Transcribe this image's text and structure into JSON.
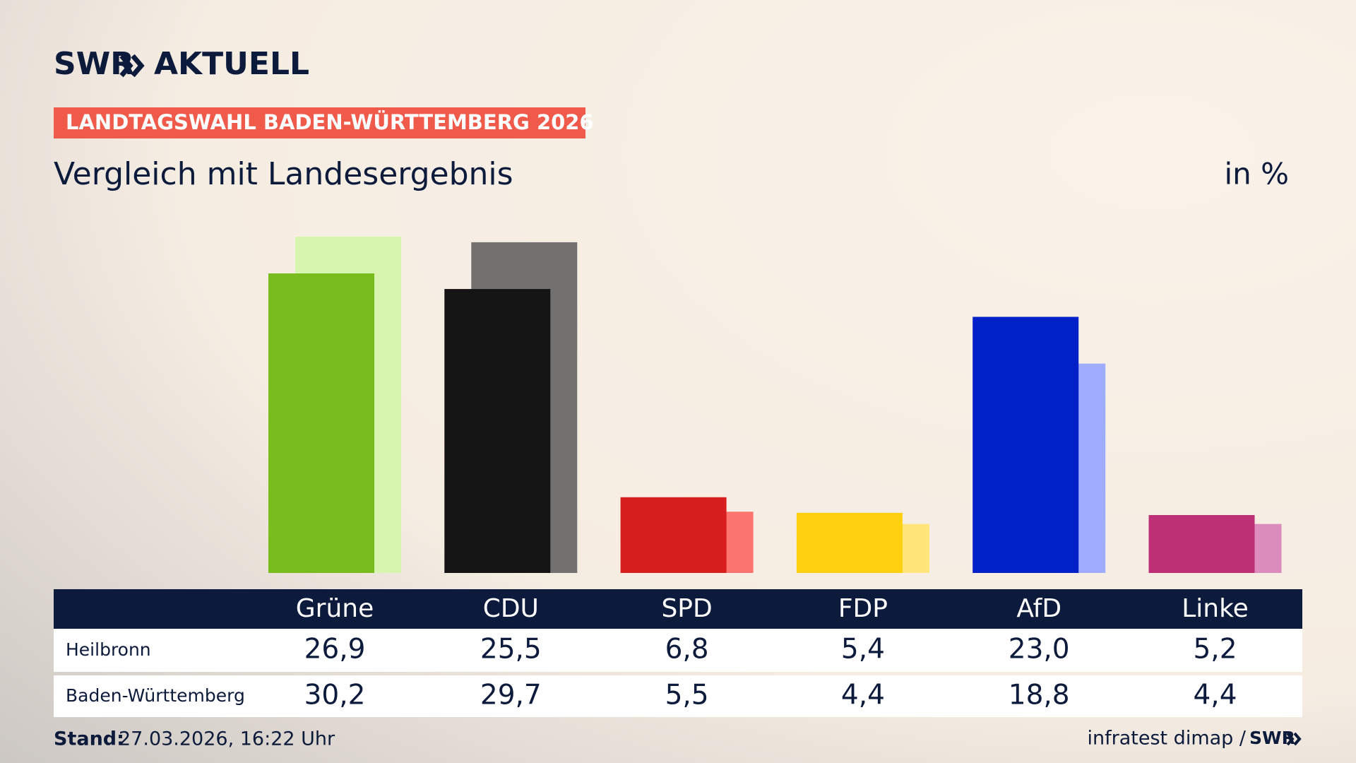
{
  "header": {
    "logo": "SWR",
    "brand": "AKTUELL",
    "banner": "LANDTAGSWAHL BADEN-WÜRTTEMBERG 2026"
  },
  "chart_data": {
    "type": "bar",
    "title": "Vergleich mit Landesergebnis",
    "unit": "in %",
    "categories": [
      "Grüne",
      "CDU",
      "SPD",
      "FDP",
      "AfD",
      "Linke"
    ],
    "series": [
      {
        "name": "Heilbronn",
        "values": [
          26.9,
          25.5,
          6.8,
          5.4,
          23.0,
          5.2
        ],
        "value_labels": [
          "26,9",
          "25,5",
          "6,8",
          "5,4",
          "23,0",
          "5,2"
        ],
        "colors": [
          "#78bd1d",
          "#141414",
          "#d71f1f",
          "#ffd00f",
          "#0020c8",
          "#bd3075"
        ]
      },
      {
        "name": "Baden-Württemberg",
        "values": [
          30.2,
          29.7,
          5.5,
          4.4,
          18.8,
          4.4
        ],
        "value_labels": [
          "30,2",
          "29,7",
          "5,5",
          "4,4",
          "18,8",
          "4,4"
        ],
        "colors": [
          "#d7f5ae",
          "#73716f",
          "#fb746d",
          "#ffe57a",
          "#a0acff",
          "#dc8cbb"
        ]
      }
    ]
  },
  "footer": {
    "stand_label": "Stand:",
    "stand": "27.03.2026, 16:22 Uhr",
    "source": "infratest dimap /",
    "source_logo": "SWR"
  }
}
